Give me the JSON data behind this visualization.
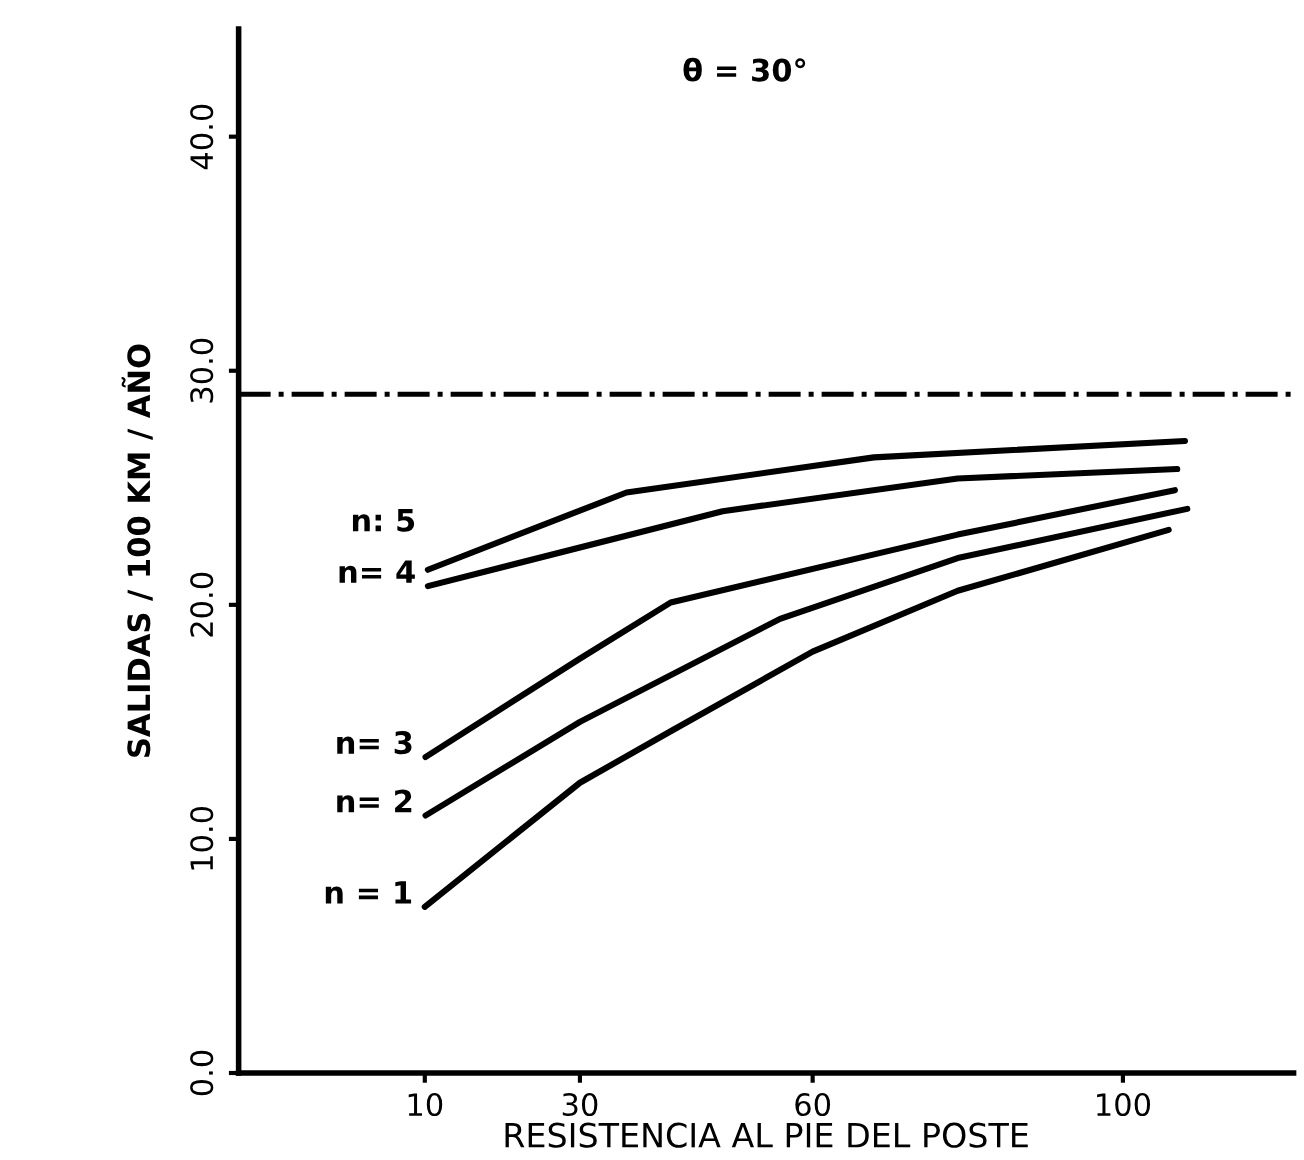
{
  "chart_data": {
    "type": "line",
    "xlabel": "RESISTENCIA AL PIE DEL POSTE",
    "ylabel": "SALIDAS / 100 KM / AÑO",
    "annotations": [
      "θ = 30°"
    ],
    "xlim": [
      -14,
      122
    ],
    "xticks": [
      10,
      30,
      60,
      100
    ],
    "ylim": [
      0,
      44.6
    ],
    "yticks": [
      {
        "value": 0,
        "label": "0.0"
      },
      {
        "value": 10,
        "label": "10.0"
      },
      {
        "value": 20,
        "label": "20.0"
      },
      {
        "value": 30,
        "label": "30.0"
      },
      {
        "value": 40,
        "label": "40.0"
      }
    ],
    "ref_lines": [
      {
        "axis": "y",
        "value": 29,
        "color": "#000000",
        "line_style": "dashdot"
      }
    ],
    "grid": false,
    "legend": false,
    "marker": "none",
    "line_style": "solid",
    "series": [
      {
        "name": "n = 1",
        "color": "#000000",
        "x": [
          10,
          30,
          41.7,
          60,
          78.7,
          105.9
        ],
        "values": [
          7.1,
          12.4,
          14.6,
          18.0,
          20.6,
          23.2
        ]
      },
      {
        "name": "n= 2",
        "color": "#000000",
        "x": [
          10.1,
          30,
          55.8,
          78.7,
          108.3
        ],
        "values": [
          11.0,
          15.0,
          19.4,
          22.0,
          24.1
        ]
      },
      {
        "name": "n= 3",
        "color": "#000000",
        "x": [
          10.1,
          30,
          41.7,
          78.7,
          106.7
        ],
        "values": [
          13.5,
          17.7,
          20.1,
          23.0,
          24.9
        ]
      },
      {
        "name": "n= 4",
        "color": "#000000",
        "x": [
          10.4,
          48.4,
          78.7,
          107
        ],
        "values": [
          20.8,
          24.0,
          25.4,
          25.8
        ]
      },
      {
        "name": "n: 5",
        "color": "#000000",
        "x": [
          10.4,
          36,
          67.9,
          108
        ],
        "values": [
          21.5,
          24.8,
          26.3,
          27.0
        ]
      }
    ]
  }
}
